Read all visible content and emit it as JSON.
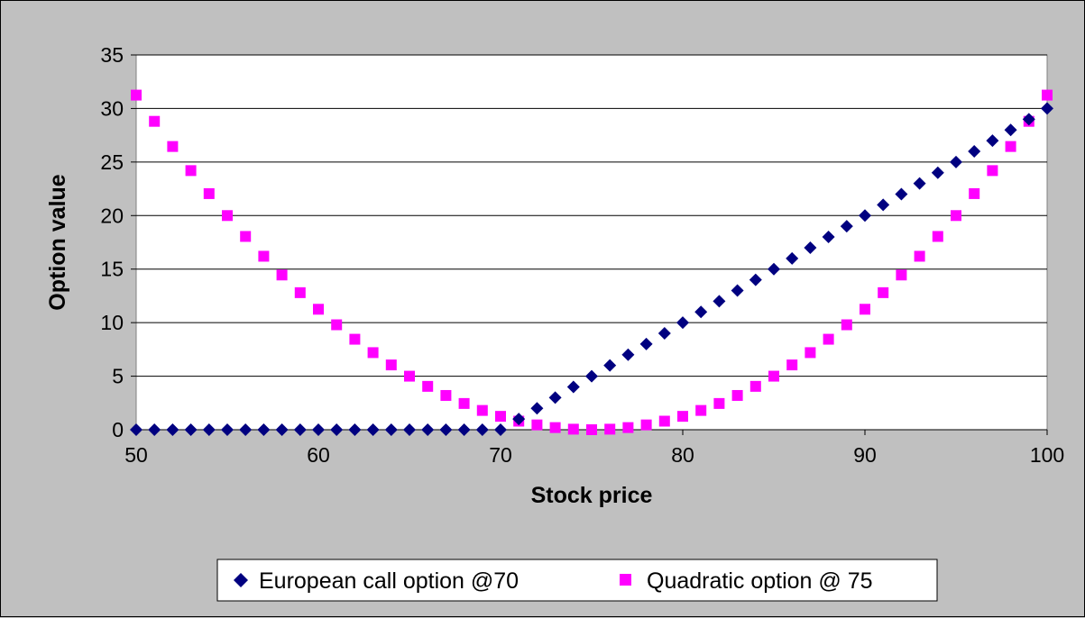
{
  "chart_data": {
    "type": "scatter",
    "title": "",
    "xlabel": "Stock price",
    "ylabel": "Option value",
    "xlim": [
      50,
      100
    ],
    "ylim": [
      0,
      35
    ],
    "x_ticks": [
      50,
      60,
      70,
      80,
      90,
      100
    ],
    "y_ticks": [
      0,
      5,
      10,
      15,
      20,
      25,
      30,
      35
    ],
    "grid": "horizontal major gridlines",
    "legend_position": "bottom",
    "plot_background": "#ffffff",
    "chart_background": "#c0c0c0",
    "series": [
      {
        "name": "European call option @70",
        "marker": "diamond",
        "color": "#000080",
        "x": [
          50,
          51,
          52,
          53,
          54,
          55,
          56,
          57,
          58,
          59,
          60,
          61,
          62,
          63,
          64,
          65,
          66,
          67,
          68,
          69,
          70,
          71,
          72,
          73,
          74,
          75,
          76,
          77,
          78,
          79,
          80,
          81,
          82,
          83,
          84,
          85,
          86,
          87,
          88,
          89,
          90,
          91,
          92,
          93,
          94,
          95,
          96,
          97,
          98,
          99,
          100
        ],
        "y": [
          0,
          0,
          0,
          0,
          0,
          0,
          0,
          0,
          0,
          0,
          0,
          0,
          0,
          0,
          0,
          0,
          0,
          0,
          0,
          0,
          0,
          1,
          2,
          3,
          4,
          5,
          6,
          7,
          8,
          9,
          10,
          11,
          12,
          13,
          14,
          15,
          16,
          17,
          18,
          19,
          20,
          21,
          22,
          23,
          24,
          25,
          26,
          27,
          28,
          29,
          30
        ]
      },
      {
        "name": "Quadratic option @ 75",
        "marker": "square",
        "color": "#ff00ff",
        "x": [
          50,
          51,
          52,
          53,
          54,
          55,
          56,
          57,
          58,
          59,
          60,
          61,
          62,
          63,
          64,
          65,
          66,
          67,
          68,
          69,
          70,
          71,
          72,
          73,
          74,
          75,
          76,
          77,
          78,
          79,
          80,
          81,
          82,
          83,
          84,
          85,
          86,
          87,
          88,
          89,
          90,
          91,
          92,
          93,
          94,
          95,
          96,
          97,
          98,
          99,
          100
        ],
        "y": [
          31.25,
          28.8,
          26.45,
          24.2,
          22.05,
          20,
          18.05,
          16.2,
          14.45,
          12.8,
          11.25,
          9.8,
          8.45,
          7.2,
          6.05,
          5,
          4.05,
          3.2,
          2.45,
          1.8,
          1.25,
          0.8,
          0.45,
          0.2,
          0.05,
          0,
          0.05,
          0.2,
          0.45,
          0.8,
          1.25,
          1.8,
          2.45,
          3.2,
          4.05,
          5,
          6.05,
          7.2,
          8.45,
          9.8,
          11.25,
          12.8,
          14.45,
          16.2,
          18.05,
          20,
          22.05,
          24.2,
          26.45,
          28.8,
          31.25
        ]
      }
    ]
  }
}
